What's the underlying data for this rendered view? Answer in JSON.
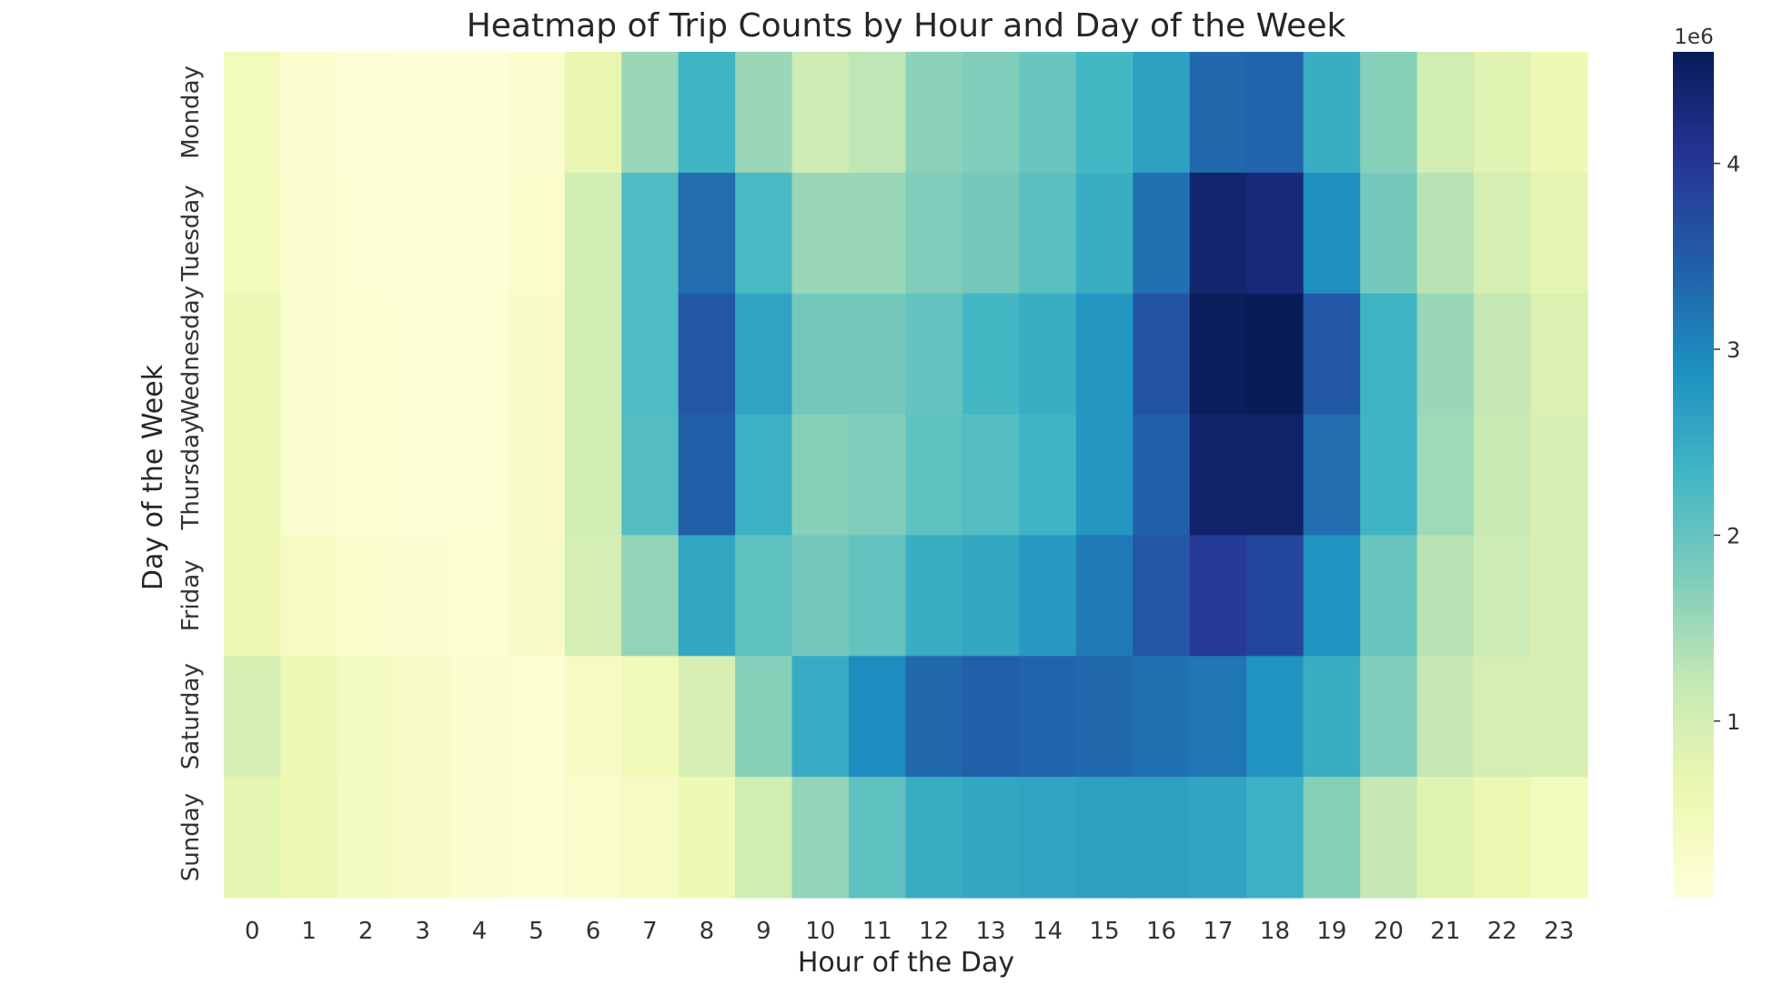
{
  "chart_data": {
    "type": "heatmap",
    "title": "Heatmap of Trip Counts by Hour and Day of the Week",
    "xlabel": "Hour of the Day",
    "ylabel": "Day of the Week",
    "x_categories": [
      "0",
      "1",
      "2",
      "3",
      "4",
      "5",
      "6",
      "7",
      "8",
      "9",
      "10",
      "11",
      "12",
      "13",
      "14",
      "15",
      "16",
      "17",
      "18",
      "19",
      "20",
      "21",
      "22",
      "23"
    ],
    "y_categories": [
      "Monday",
      "Tuesday",
      "Wednesday",
      "Thursday",
      "Friday",
      "Saturday",
      "Sunday"
    ],
    "colorbar": {
      "range": [
        0.05,
        4.6
      ],
      "ticks": [
        1,
        2,
        3,
        4
      ],
      "tick_labels": [
        "1",
        "2",
        "3",
        "4"
      ],
      "multiplier_label": "1e6",
      "colormap": "YlGnBu",
      "colors": [
        "#ffffd9",
        "#edf8b1",
        "#c7e9b4",
        "#7fcdbb",
        "#41b6c4",
        "#1d91c0",
        "#225ea8",
        "#253494",
        "#081d58"
      ]
    },
    "values": [
      [
        0.45,
        0.18,
        0.1,
        0.07,
        0.08,
        0.22,
        0.7,
        1.55,
        2.35,
        1.55,
        1.1,
        1.25,
        1.65,
        1.75,
        1.95,
        2.3,
        2.65,
        3.35,
        3.4,
        2.45,
        1.7,
        1.05,
        0.8,
        0.55
      ],
      [
        0.45,
        0.2,
        0.12,
        0.08,
        0.08,
        0.25,
        1.05,
        2.2,
        3.3,
        2.25,
        1.55,
        1.55,
        1.75,
        1.85,
        2.1,
        2.45,
        3.25,
        4.4,
        4.3,
        2.9,
        1.85,
        1.3,
        1.0,
        0.75
      ],
      [
        0.55,
        0.22,
        0.15,
        0.1,
        0.12,
        0.28,
        1.05,
        2.2,
        3.55,
        2.6,
        1.85,
        1.85,
        2.0,
        2.3,
        2.45,
        2.8,
        3.6,
        4.55,
        4.6,
        3.55,
        2.35,
        1.55,
        1.2,
        0.9
      ],
      [
        0.55,
        0.22,
        0.15,
        0.1,
        0.12,
        0.28,
        1.05,
        2.15,
        3.45,
        2.4,
        1.7,
        1.75,
        2.05,
        2.15,
        2.35,
        2.8,
        3.45,
        4.45,
        4.45,
        3.3,
        2.35,
        1.5,
        1.15,
        0.95
      ],
      [
        0.6,
        0.35,
        0.25,
        0.18,
        0.15,
        0.3,
        1.0,
        1.6,
        2.55,
        2.05,
        1.85,
        2.0,
        2.45,
        2.55,
        2.75,
        3.15,
        3.55,
        3.95,
        3.8,
        2.85,
        1.95,
        1.3,
        1.1,
        0.95
      ],
      [
        0.95,
        0.55,
        0.4,
        0.3,
        0.2,
        0.15,
        0.35,
        0.5,
        0.95,
        1.7,
        2.5,
        2.95,
        3.35,
        3.45,
        3.4,
        3.35,
        3.25,
        3.2,
        2.85,
        2.45,
        1.75,
        1.2,
        1.0,
        0.95
      ],
      [
        0.75,
        0.6,
        0.4,
        0.3,
        0.2,
        0.15,
        0.25,
        0.35,
        0.55,
        1.05,
        1.6,
        2.05,
        2.45,
        2.55,
        2.6,
        2.65,
        2.65,
        2.6,
        2.4,
        1.7,
        1.2,
        0.8,
        0.6,
        0.45
      ]
    ]
  }
}
